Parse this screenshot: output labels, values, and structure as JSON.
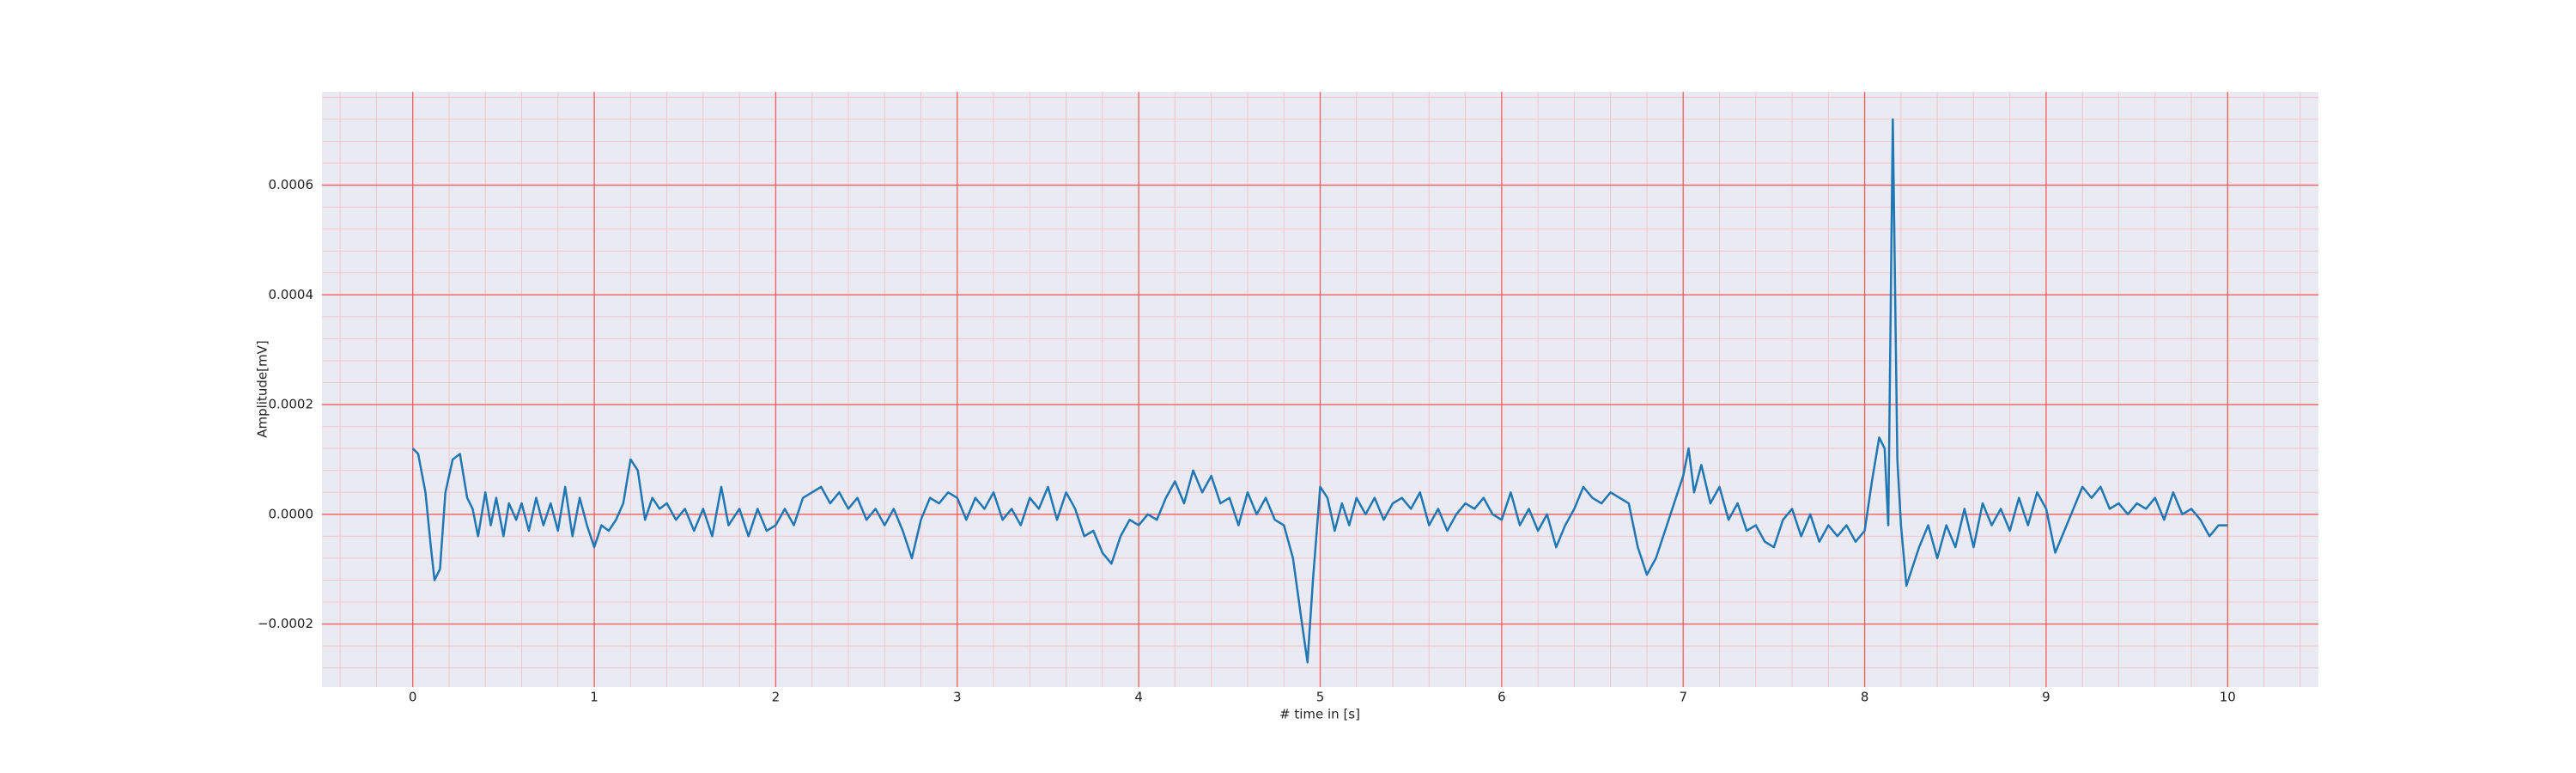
{
  "chart_data": {
    "type": "line",
    "xlabel": "# time in [s]",
    "ylabel": "Amplitude[mV]",
    "color": "#1f77b4",
    "xlim": [
      -0.5,
      10.5
    ],
    "ylim": [
      -0.000315,
      0.00077
    ],
    "xticks": [
      0,
      1,
      2,
      3,
      4,
      5,
      6,
      7,
      8,
      9,
      10
    ],
    "yticks": [
      {
        "value": -0.0002,
        "label": "−0.0002"
      },
      {
        "value": 0,
        "label": "0.0000"
      },
      0.0002,
      0.0004,
      0.0006
    ],
    "grid": true,
    "grid_color": "#f06060",
    "minor_grid": true,
    "minor_grid_color": "#f5c4cc",
    "background": "#eaeaf2",
    "x": [
      0,
      0.03,
      0.07,
      0.1,
      0.12,
      0.15,
      0.18,
      0.22,
      0.26,
      0.3,
      0.33,
      0.36,
      0.4,
      0.43,
      0.46,
      0.5,
      0.53,
      0.57,
      0.6,
      0.64,
      0.68,
      0.72,
      0.76,
      0.8,
      0.84,
      0.88,
      0.92,
      0.96,
      1.0,
      1.04,
      1.08,
      1.12,
      1.16,
      1.2,
      1.24,
      1.28,
      1.32,
      1.36,
      1.4,
      1.45,
      1.5,
      1.55,
      1.6,
      1.65,
      1.7,
      1.74,
      1.8,
      1.85,
      1.9,
      1.95,
      2.0,
      2.05,
      2.1,
      2.15,
      2.2,
      2.25,
      2.3,
      2.35,
      2.4,
      2.45,
      2.5,
      2.55,
      2.6,
      2.65,
      2.7,
      2.75,
      2.8,
      2.85,
      2.9,
      2.95,
      3.0,
      3.05,
      3.1,
      3.15,
      3.2,
      3.25,
      3.3,
      3.35,
      3.4,
      3.45,
      3.5,
      3.55,
      3.6,
      3.65,
      3.7,
      3.75,
      3.8,
      3.85,
      3.9,
      3.95,
      4.0,
      4.05,
      4.1,
      4.15,
      4.2,
      4.25,
      4.3,
      4.35,
      4.4,
      4.45,
      4.5,
      4.55,
      4.6,
      4.65,
      4.7,
      4.75,
      4.8,
      4.85,
      4.9,
      4.93,
      4.96,
      5.0,
      5.04,
      5.08,
      5.12,
      5.16,
      5.2,
      5.25,
      5.3,
      5.35,
      5.4,
      5.45,
      5.5,
      5.55,
      5.6,
      5.65,
      5.7,
      5.75,
      5.8,
      5.85,
      5.9,
      5.95,
      6.0,
      6.05,
      6.1,
      6.15,
      6.2,
      6.25,
      6.3,
      6.35,
      6.4,
      6.45,
      6.5,
      6.55,
      6.6,
      6.65,
      6.7,
      6.75,
      6.8,
      6.85,
      6.9,
      6.95,
      7.0,
      7.03,
      7.06,
      7.1,
      7.15,
      7.2,
      7.25,
      7.3,
      7.35,
      7.4,
      7.45,
      7.5,
      7.55,
      7.6,
      7.65,
      7.7,
      7.75,
      7.8,
      7.85,
      7.9,
      7.95,
      8.0,
      8.04,
      8.08,
      8.11,
      8.13,
      8.155,
      8.18,
      8.2,
      8.23,
      8.26,
      8.3,
      8.35,
      8.4,
      8.45,
      8.5,
      8.55,
      8.6,
      8.65,
      8.7,
      8.75,
      8.8,
      8.85,
      8.9,
      8.95,
      9.0,
      9.05,
      9.1,
      9.15,
      9.2,
      9.25,
      9.3,
      9.35,
      9.4,
      9.45,
      9.5,
      9.55,
      9.6,
      9.65,
      9.7,
      9.75,
      9.8,
      9.85,
      9.9,
      9.95,
      10.0
    ],
    "values": [
      0.00012,
      0.00011,
      4e-05,
      -6e-05,
      -0.00012,
      -0.0001,
      4e-05,
      0.0001,
      0.00011,
      3e-05,
      1e-05,
      -4e-05,
      4e-05,
      -2e-05,
      3e-05,
      -4e-05,
      2e-05,
      -1e-05,
      2e-05,
      -3e-05,
      3e-05,
      -2e-05,
      2e-05,
      -3e-05,
      5e-05,
      -4e-05,
      3e-05,
      -2e-05,
      -6e-05,
      -2e-05,
      -3e-05,
      -1e-05,
      2e-05,
      0.0001,
      8e-05,
      -1e-05,
      3e-05,
      1e-05,
      2e-05,
      -1e-05,
      1e-05,
      -3e-05,
      1e-05,
      -4e-05,
      5e-05,
      -2e-05,
      1e-05,
      -4e-05,
      1e-05,
      -3e-05,
      -2e-05,
      1e-05,
      -2e-05,
      3e-05,
      4e-05,
      5e-05,
      2e-05,
      4e-05,
      1e-05,
      3e-05,
      -1e-05,
      1e-05,
      -2e-05,
      1e-05,
      -3e-05,
      -8e-05,
      -1e-05,
      3e-05,
      2e-05,
      4e-05,
      3e-05,
      -1e-05,
      3e-05,
      1e-05,
      4e-05,
      -1e-05,
      1e-05,
      -2e-05,
      3e-05,
      1e-05,
      5e-05,
      -1e-05,
      4e-05,
      1e-05,
      -4e-05,
      -3e-05,
      -7e-05,
      -9e-05,
      -4e-05,
      -1e-05,
      -2e-05,
      0,
      -1e-05,
      3e-05,
      6e-05,
      2e-05,
      8e-05,
      4e-05,
      7e-05,
      2e-05,
      3e-05,
      -2e-05,
      4e-05,
      0,
      3e-05,
      -1e-05,
      -2e-05,
      -8e-05,
      -0.0002,
      -0.00027,
      -0.00012,
      5e-05,
      3e-05,
      -3e-05,
      2e-05,
      -2e-05,
      3e-05,
      0,
      3e-05,
      -1e-05,
      2e-05,
      3e-05,
      1e-05,
      4e-05,
      -2e-05,
      1e-05,
      -3e-05,
      0,
      2e-05,
      1e-05,
      3e-05,
      0,
      -1e-05,
      4e-05,
      -2e-05,
      1e-05,
      -3e-05,
      0,
      -6e-05,
      -2e-05,
      1e-05,
      5e-05,
      3e-05,
      2e-05,
      4e-05,
      3e-05,
      2e-05,
      -6e-05,
      -0.00011,
      -8e-05,
      -3e-05,
      2e-05,
      7e-05,
      0.00012,
      4e-05,
      9e-05,
      2e-05,
      5e-05,
      -1e-05,
      2e-05,
      -3e-05,
      -2e-05,
      -5e-05,
      -6e-05,
      -1e-05,
      1e-05,
      -4e-05,
      0,
      -5e-05,
      -2e-05,
      -4e-05,
      -2e-05,
      -5e-05,
      -3e-05,
      6e-05,
      0.00014,
      0.00012,
      -2e-05,
      0.00072,
      0.0001,
      -2e-05,
      -0.00013,
      -0.0001,
      -6e-05,
      -2e-05,
      -8e-05,
      -2e-05,
      -6e-05,
      1e-05,
      -6e-05,
      2e-05,
      -2e-05,
      1e-05,
      -3e-05,
      3e-05,
      -2e-05,
      4e-05,
      1e-05,
      -7e-05,
      -3e-05,
      1e-05,
      5e-05,
      3e-05,
      5e-05,
      1e-05,
      2e-05,
      0,
      2e-05,
      1e-05,
      3e-05,
      -1e-05,
      4e-05,
      0,
      1e-05,
      -1e-05,
      -4e-05,
      -2e-05,
      -2e-05
    ]
  }
}
